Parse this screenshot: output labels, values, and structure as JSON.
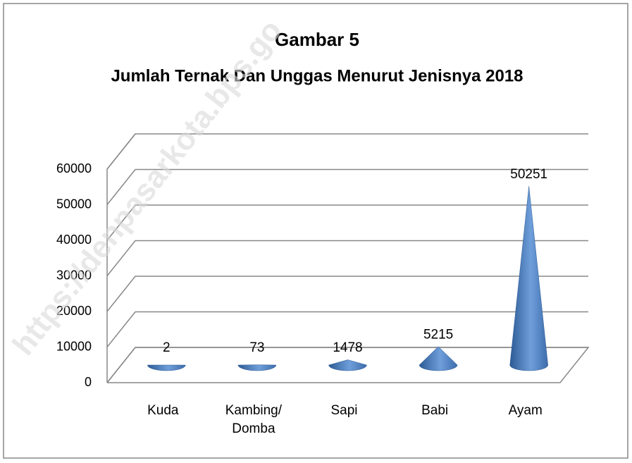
{
  "chart_data": {
    "type": "cone",
    "title": "Gambar 5",
    "subtitle": "Jumlah Ternak Dan Unggas Menurut Jenisnya 2018",
    "watermark": "https://denpasarkota.bps.go",
    "categories": [
      "Kuda",
      "Kambing/ Domba",
      "Sapi",
      "Babi",
      "Ayam"
    ],
    "values": [
      2,
      73,
      1478,
      5215,
      50251
    ],
    "color": "#4f81bd",
    "ylim": [
      0,
      60000
    ],
    "yticks": [
      0,
      10000,
      20000,
      30000,
      40000,
      50000,
      60000
    ],
    "grid": true
  }
}
